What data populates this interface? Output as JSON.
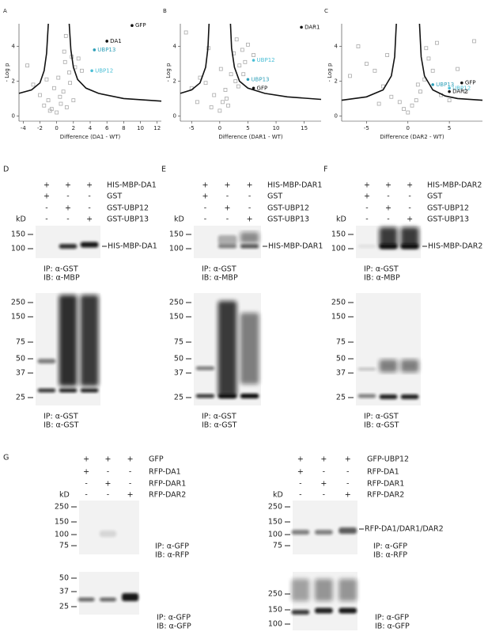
{
  "chart_data": [
    {
      "type": "scatter",
      "letter": "A",
      "xlabel": "Difference (DA1 - WT)",
      "ylabel": "- Log p",
      "xlim": [
        -4.5,
        12.5
      ],
      "ylim": [
        -0.3,
        5.3
      ],
      "xticks": [
        -4,
        -2,
        0,
        2,
        4,
        6,
        8,
        10,
        12
      ],
      "yticks": [
        0,
        2,
        4
      ],
      "points": {
        "color": "#aaaaaa",
        "x": [
          -3.5,
          -2.8,
          -2,
          -1.5,
          -1,
          -0.6,
          -0.3,
          0,
          0.2,
          0.5,
          0.8,
          1,
          1.2,
          1.5,
          1.8,
          2.2,
          2.6,
          3,
          -0.8,
          0.4,
          1.1,
          1.6,
          -1.2,
          0.9,
          2
        ],
        "values": [
          2.9,
          1.8,
          1.2,
          0.6,
          0.9,
          0.4,
          1.6,
          0.2,
          2.2,
          0.7,
          1.4,
          3.1,
          0.5,
          2.5,
          3.4,
          2.8,
          3.3,
          2.6,
          0.3,
          1.1,
          4.6,
          1.9,
          2.1,
          3.7,
          0.9
        ]
      },
      "threshold": {
        "color": "#111111",
        "x": [
          -4.5,
          -3,
          -2,
          -1.5,
          -1.2,
          -1,
          null,
          1.5,
          1.7,
          2,
          2.5,
          3.5,
          5,
          8,
          12.5
        ],
        "values": [
          1.3,
          1.5,
          1.9,
          2.6,
          3.6,
          5.3,
          null,
          5.3,
          3.8,
          2.8,
          2.1,
          1.6,
          1.3,
          1,
          0.85
        ]
      },
      "series": [
        {
          "name": "GFP",
          "color": "#111111",
          "x": [
            9
          ],
          "values": [
            5.2
          ]
        },
        {
          "name": "DA1",
          "color": "#111111",
          "x": [
            6
          ],
          "values": [
            4.3
          ]
        },
        {
          "name": "UBP13",
          "color": "#2f9fb8",
          "x": [
            4.5
          ],
          "values": [
            3.8
          ]
        },
        {
          "name": "UBP12",
          "color": "#4bbfd6",
          "x": [
            4.2
          ],
          "values": [
            2.6
          ]
        }
      ]
    },
    {
      "type": "scatter",
      "letter": "B",
      "xlabel": "Difference (DAR1 - WT)",
      "ylabel": "- Log p",
      "xlim": [
        -7,
        18
      ],
      "ylim": [
        -0.3,
        5.3
      ],
      "xticks": [
        -5,
        0,
        5,
        10,
        15
      ],
      "yticks": [
        0,
        2,
        4
      ],
      "points": {
        "color": "#aaaaaa",
        "x": [
          -6,
          -5,
          -3.5,
          -2.5,
          -1.5,
          -1,
          0,
          0.5,
          1,
          1.5,
          2,
          2.5,
          3,
          3.5,
          4,
          4.5,
          5,
          -2,
          1.2,
          2.8,
          3.3,
          0.2,
          -4,
          4.2,
          6
        ],
        "values": [
          4.8,
          1.6,
          2.2,
          1.9,
          0.5,
          1.2,
          0.3,
          0.8,
          1.5,
          0.6,
          2.4,
          3.6,
          4.4,
          2.9,
          3.8,
          3.1,
          4.1,
          3.9,
          1,
          2,
          1.7,
          2.7,
          0.8,
          2.4,
          3.5
        ]
      },
      "threshold": {
        "color": "#111111",
        "x": [
          -7,
          -5,
          -3.5,
          -2.5,
          -2.1,
          -1.9,
          null,
          1.9,
          2.1,
          2.6,
          3.5,
          5,
          8,
          12,
          18
        ],
        "values": [
          1.3,
          1.5,
          1.9,
          2.8,
          3.9,
          5.3,
          null,
          5.3,
          3.9,
          2.8,
          2,
          1.6,
          1.3,
          1.1,
          0.95
        ]
      },
      "series": [
        {
          "name": "DAR1",
          "color": "#111111",
          "x": [
            14.5
          ],
          "values": [
            5.1
          ]
        },
        {
          "name": "UBP12",
          "color": "#4bbfd6",
          "x": [
            6
          ],
          "values": [
            3.2
          ]
        },
        {
          "name": "UBP13",
          "color": "#2f9fb8",
          "x": [
            5
          ],
          "values": [
            2.1
          ]
        },
        {
          "name": "GFP",
          "color": "#111111",
          "x": [
            6
          ],
          "values": [
            1.6
          ]
        }
      ]
    },
    {
      "type": "scatter",
      "letter": "C",
      "xlabel": "Difference (DAR2 - WT)",
      "ylabel": "- Log p",
      "xlim": [
        -8,
        9
      ],
      "ylim": [
        -0.3,
        5.3
      ],
      "xticks": [
        -5,
        0,
        5
      ],
      "yticks": [
        0,
        2,
        4
      ],
      "points": {
        "color": "#aaaaaa",
        "x": [
          -7,
          -6,
          -5,
          -4,
          -3,
          -2.5,
          -2,
          -1,
          -0.5,
          0,
          0.5,
          1,
          1.5,
          2,
          2.5,
          3,
          3.5,
          4,
          5,
          6,
          7,
          8,
          -3.5,
          1.2,
          2.2
        ],
        "values": [
          2.3,
          4,
          3,
          2.6,
          1.7,
          3.5,
          1.1,
          0.8,
          0.4,
          0.2,
          0.6,
          0.9,
          1.4,
          2.1,
          3.3,
          2.6,
          4.2,
          1.2,
          0.9,
          2.7,
          1.4,
          4.3,
          0.7,
          1.8,
          3.9
        ]
      },
      "threshold": {
        "color": "#111111",
        "x": [
          -8,
          -5,
          -3,
          -2,
          -1.6,
          -1.4,
          null,
          1.4,
          1.6,
          2,
          3,
          4.5,
          6,
          9
        ],
        "values": [
          0.9,
          1.1,
          1.5,
          2.3,
          3.4,
          5.3,
          null,
          5.3,
          3.4,
          2.3,
          1.5,
          1.15,
          1,
          0.9
        ]
      },
      "series": [
        {
          "name": "GFP",
          "color": "#111111",
          "x": [
            6.5
          ],
          "values": [
            1.9
          ]
        },
        {
          "name": "UBP13",
          "color": "#2f9fb8",
          "x": [
            3
          ],
          "values": [
            1.8
          ]
        },
        {
          "name": "UBP12",
          "color": "#4bbfd6",
          "x": [
            5
          ],
          "values": [
            1.6
          ]
        },
        {
          "name": "DAR2",
          "color": "#111111",
          "x": [
            5
          ],
          "values": [
            1.4
          ]
        }
      ]
    }
  ],
  "blots": [
    {
      "letter": "D",
      "kd": "kD",
      "rows": [
        {
          "signs": [
            "+",
            "+",
            "+"
          ],
          "label": "HIS-MBP-DA1"
        },
        {
          "signs": [
            "+",
            "-",
            "-"
          ],
          "label": "GST"
        },
        {
          "signs": [
            "-",
            "+",
            "-"
          ],
          "label": "GST-UBP12"
        },
        {
          "signs": [
            "-",
            "-",
            "+"
          ],
          "label": "GST-UBP13"
        }
      ],
      "top": {
        "markers": [
          150,
          100
        ],
        "band_label": "HIS-MBP-DA1",
        "caption": [
          "IP: α-GST",
          "IB: α-MBP"
        ]
      },
      "bottom": {
        "markers": [
          250,
          150,
          75,
          50,
          37,
          25
        ],
        "caption": [
          "IP: α-GST",
          "IB: α-GST"
        ]
      }
    },
    {
      "letter": "E",
      "kd": "kD",
      "rows": [
        {
          "signs": [
            "+",
            "+",
            "+"
          ],
          "label": "HIS-MBP-DAR1"
        },
        {
          "signs": [
            "+",
            "-",
            "-"
          ],
          "label": "GST"
        },
        {
          "signs": [
            "-",
            "+",
            "-"
          ],
          "label": "GST-UBP12"
        },
        {
          "signs": [
            "-",
            "-",
            "+"
          ],
          "label": "GST-UBP13"
        }
      ],
      "top": {
        "markers": [
          150,
          100
        ],
        "band_label": "HIS-MBP-DAR1",
        "caption": [
          "IP: α-GST",
          "IB: α-MBP"
        ]
      },
      "bottom": {
        "markers": [
          250,
          150,
          75,
          50,
          37,
          25
        ],
        "caption": [
          "IP: α-GST",
          "IB: α-GST"
        ]
      }
    },
    {
      "letter": "F",
      "kd": "kD",
      "rows": [
        {
          "signs": [
            "+",
            "+",
            "+"
          ],
          "label": "HIS-MBP-DAR2"
        },
        {
          "signs": [
            "+",
            "-",
            "-"
          ],
          "label": "GST"
        },
        {
          "signs": [
            "-",
            "+",
            "-"
          ],
          "label": "GST-UBP12"
        },
        {
          "signs": [
            "-",
            "-",
            "+"
          ],
          "label": "GST-UBP13"
        }
      ],
      "top": {
        "markers": [
          150,
          100
        ],
        "band_label": "HIS-MBP-DAR2",
        "caption": [
          "IP: α-GST",
          "IB: α-MBP"
        ]
      },
      "bottom": {
        "markers": [
          250,
          150,
          75,
          50,
          37,
          25
        ],
        "caption": [
          "IP: α-GST",
          "IB: α-GST"
        ]
      }
    }
  ],
  "panel_g": {
    "letter": "G",
    "panels": [
      {
        "kd": "kD",
        "rows": [
          {
            "signs": [
              "+",
              "+",
              "+"
            ],
            "label": "GFP"
          },
          {
            "signs": [
              "+",
              "-",
              "-"
            ],
            "label": "RFP-DA1"
          },
          {
            "signs": [
              "-",
              "+",
              "-"
            ],
            "label": "RFP-DAR1"
          },
          {
            "signs": [
              "-",
              "-",
              "+"
            ],
            "label": "RFP-DAR2"
          }
        ],
        "top": {
          "markers": [
            250,
            150,
            100,
            75
          ],
          "caption": [
            "IP: α-GFP",
            "IB: α-RFP"
          ]
        },
        "bottom": {
          "markers": [
            50,
            37,
            25
          ],
          "caption": [
            "IP: α-GFP",
            "IB: α-GFP"
          ]
        }
      },
      {
        "kd": "kD",
        "rows": [
          {
            "signs": [
              "+",
              "+",
              "+"
            ],
            "label": "GFP-UBP12"
          },
          {
            "signs": [
              "+",
              "-",
              "-"
            ],
            "label": "RFP-DA1"
          },
          {
            "signs": [
              "-",
              "+",
              "-"
            ],
            "label": "RFP-DAR1"
          },
          {
            "signs": [
              "-",
              "-",
              "+"
            ],
            "label": "RFP-DAR2"
          }
        ],
        "top": {
          "markers": [
            250,
            150,
            100,
            75
          ],
          "band_label": "RFP-DA1/DAR1/DAR2",
          "caption": [
            "IP: α-GFP",
            "IB: α-RFP"
          ]
        },
        "bottom": {
          "markers": [
            250,
            150,
            100
          ],
          "caption": [
            "IP: α-GFP",
            "IB: α-GFP"
          ]
        }
      }
    ]
  }
}
